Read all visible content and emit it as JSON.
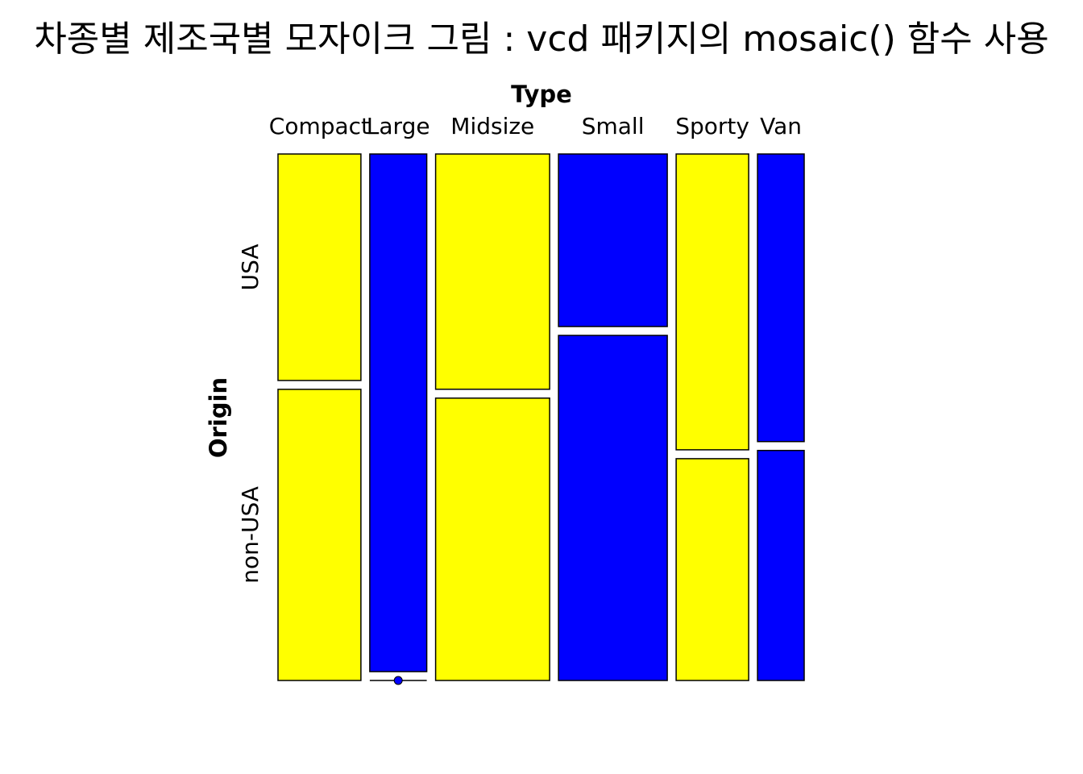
{
  "title": "차종별 제조국별 모자이크 그림 : vcd 패키지의 mosaic() 함수 사용",
  "chart_data": {
    "type": "mosaic",
    "title": "차종별 제조국별 모자이크 그림 : vcd 패키지의 mosaic() 함수 사용",
    "column_variable": "Type",
    "row_variable": "Origin",
    "categories": [
      "Compact",
      "Large",
      "Midsize",
      "Small",
      "Sporty",
      "Van"
    ],
    "origins": [
      "USA",
      "non-USA"
    ],
    "counts": {
      "USA": [
        7,
        11,
        10,
        7,
        8,
        5
      ],
      "non-USA": [
        9,
        0,
        12,
        14,
        6,
        4
      ]
    },
    "colors": {
      "Compact": "#FFFF00",
      "Large": "#0000FF",
      "Midsize": "#FFFF00",
      "Small": "#0000FF",
      "Sporty": "#FFFF00",
      "Van": "#0000FF"
    }
  }
}
